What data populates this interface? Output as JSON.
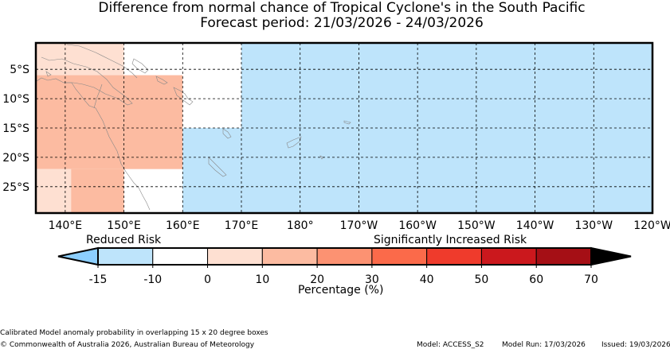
{
  "title": "Difference from normal chance of Tropical Cyclone's in the South Pacific",
  "subtitle": "Forecast period: 21/03/2026 - 24/03/2026",
  "map": {
    "lon_ticks": [
      "140°E",
      "150°E",
      "160°E",
      "170°E",
      "180°",
      "170°W",
      "160°W",
      "150°W",
      "140°W",
      "130°W",
      "120°W"
    ],
    "lat_ticks": [
      "5°S",
      "10°S",
      "15°S",
      "20°S",
      "25°S"
    ],
    "lon_range": [
      135,
      240
    ],
    "lat_range": [
      -29.5,
      -0.5
    ],
    "grid": true,
    "cells": [
      {
        "lon": [
          135,
          150
        ],
        "lat": [
          -5,
          0
        ],
        "percent": 0
      },
      {
        "lon": [
          135,
          150
        ],
        "lat": [
          -6,
          -5
        ],
        "percent": 0
      },
      {
        "lon": [
          135,
          150
        ],
        "lat": [
          -22,
          -6
        ],
        "percent": 10
      },
      {
        "lon": [
          135,
          141
        ],
        "lat": [
          -30,
          -22
        ],
        "percent": 0
      },
      {
        "lon": [
          141,
          150
        ],
        "lat": [
          -30,
          -22
        ],
        "percent": 10
      },
      {
        "lon": [
          150,
          160
        ],
        "lat": [
          -22,
          -6
        ],
        "percent": 10
      },
      {
        "lon": [
          160,
          170
        ],
        "lat": [
          -15,
          0
        ],
        "percent": -10
      },
      {
        "lon": [
          160,
          240
        ],
        "lat": [
          -30,
          -15
        ],
        "percent": -15
      },
      {
        "lon": [
          170,
          240
        ],
        "lat": [
          -15,
          0
        ],
        "percent": -15
      }
    ]
  },
  "colorbar": {
    "reduced_label": "Reduced Risk",
    "increased_label": "Significantly Increased Risk",
    "xlabel": "Percentage (%)",
    "ticks": [
      "-15",
      "-10",
      "0",
      "10",
      "20",
      "30",
      "40",
      "50",
      "60",
      "70"
    ],
    "under_color": "#8ccfff",
    "over_color": "#000000",
    "colors": [
      "#bee4fb",
      "#ffffff",
      "#fee0d2",
      "#fcbba1",
      "#fc9272",
      "#fb6a4a",
      "#ef3b2c",
      "#cb181d",
      "#a50f15"
    ]
  },
  "footer": {
    "method": "Calibrated Model anomaly probability in overlapping 15 x 20 degree boxes",
    "copyright": "© Commonwealth of Australia 2026, Australian Bureau of Meteorology",
    "model": "Model: ACCESS_S2",
    "model_run": "Model Run: 17/03/2026",
    "issued": "Issued: 19/03/2026"
  }
}
